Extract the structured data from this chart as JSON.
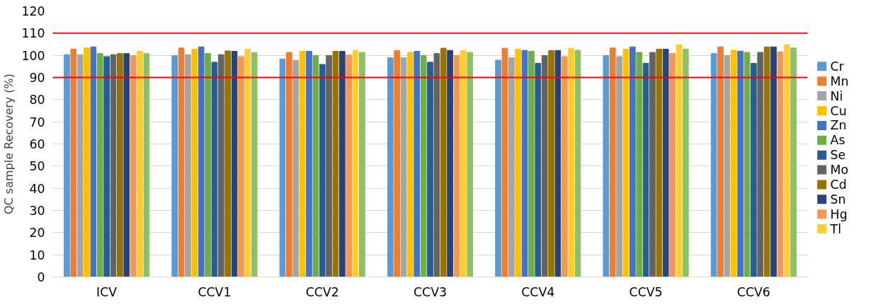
{
  "chart_data": {
    "type": "bar",
    "ylabel": "QC sample Recovery (%)",
    "categories": [
      "ICV",
      "CCV1",
      "CCV2",
      "CCV3",
      "CCV4",
      "CCV5",
      "CCV6"
    ],
    "series": [
      {
        "name": "Cr",
        "color": "#5b9bd5",
        "values": [
          100.3,
          99.9,
          98.3,
          98.9,
          97.8,
          99.9,
          100.8
        ]
      },
      {
        "name": "Mn",
        "color": "#ed7d31",
        "values": [
          102.8,
          103.3,
          101.3,
          102.2,
          103.2,
          103.3,
          103.8
        ]
      },
      {
        "name": "Ni",
        "color": "#a5a5a5",
        "values": [
          100.3,
          100.3,
          97.8,
          98.9,
          98.9,
          99.4,
          99.9
        ]
      },
      {
        "name": "Cu",
        "color": "#ffc000",
        "values": [
          103.3,
          102.8,
          101.8,
          101.3,
          102.8,
          102.8,
          102.3
        ]
      },
      {
        "name": "Zn",
        "color": "#4472c4",
        "values": [
          103.8,
          103.8,
          101.8,
          101.8,
          102.2,
          103.8,
          101.9
        ]
      },
      {
        "name": "As",
        "color": "#70ad47",
        "values": [
          100.8,
          100.8,
          99.9,
          99.9,
          101.8,
          101.3,
          101.3
        ]
      },
      {
        "name": "Se",
        "color": "#255e91",
        "values": [
          99.4,
          96.9,
          95.9,
          96.9,
          96.4,
          96.4,
          96.4
        ]
      },
      {
        "name": "Mo",
        "color": "#636363",
        "values": [
          100.3,
          100.3,
          99.9,
          100.8,
          99.9,
          101.3,
          101.3
        ]
      },
      {
        "name": "Cd",
        "color": "#997300",
        "values": [
          100.8,
          102.0,
          101.8,
          103.2,
          102.2,
          102.8,
          103.8
        ]
      },
      {
        "name": "Sn",
        "color": "#264478",
        "values": [
          100.8,
          101.8,
          101.8,
          102.2,
          102.2,
          102.8,
          103.8
        ]
      },
      {
        "name": "Hg",
        "color": "#f1975a",
        "values": [
          99.9,
          99.4,
          100.1,
          99.9,
          99.4,
          100.9,
          101.6
        ]
      },
      {
        "name": "Tl",
        "color": "#ffcd33",
        "values": [
          101.8,
          102.8,
          102.2,
          102.2,
          103.2,
          104.8,
          104.8
        ]
      },
      {
        "color": "#8cc168",
        "values": [
          100.8,
          101.3,
          101.3,
          101.3,
          102.3,
          102.8,
          103.3
        ]
      }
    ],
    "ylim": [
      0,
      120
    ],
    "yticks": [
      0,
      10,
      20,
      30,
      40,
      50,
      60,
      70,
      80,
      90,
      100,
      110,
      120
    ],
    "ref_lines": [
      {
        "axis": "y",
        "value": 90,
        "color": "#ff0000"
      },
      {
        "axis": "y",
        "value": 110,
        "color": "#ff0000"
      }
    ],
    "grid": "y",
    "legend": "right"
  }
}
